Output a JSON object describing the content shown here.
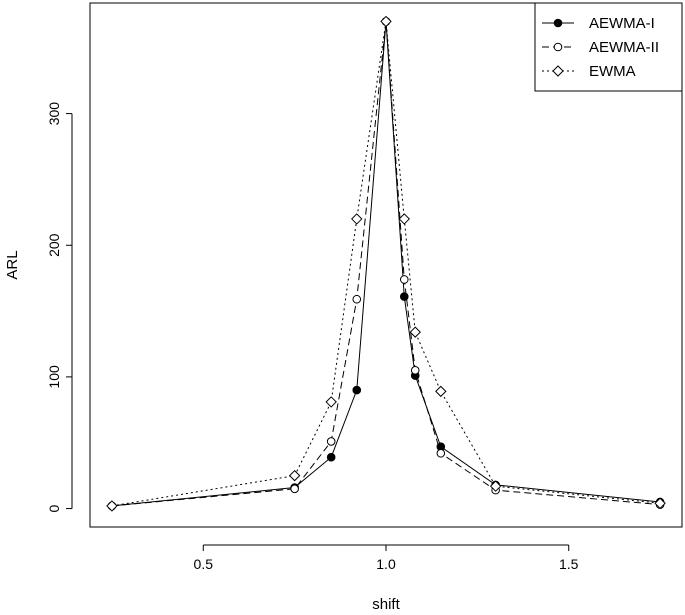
{
  "chart_data": {
    "type": "line",
    "title": "",
    "xlabel": "shift",
    "ylabel": "ARL",
    "xlim": [
      0.19,
      1.81
    ],
    "ylim": [
      -14,
      384
    ],
    "xticks": [
      0.5,
      1.0,
      1.5
    ],
    "xtick_labels": [
      "0.5",
      "1.0",
      "1.5"
    ],
    "yticks": [
      0,
      100,
      200,
      300
    ],
    "ytick_labels": [
      "0",
      "100",
      "200",
      "300"
    ],
    "grid": false,
    "legend_position": "top-right",
    "series": [
      {
        "name": "AEWMA-I",
        "line_style": "solid",
        "marker": "filled-circle",
        "x": [
          0.25,
          0.75,
          0.85,
          0.92,
          1.0,
          1.05,
          1.08,
          1.15,
          1.3,
          1.75
        ],
        "y": [
          2,
          16,
          39,
          90,
          370,
          161,
          101,
          47,
          18,
          5
        ]
      },
      {
        "name": "AEWMA-II",
        "line_style": "dashed",
        "marker": "open-circle",
        "x": [
          0.25,
          0.75,
          0.85,
          0.92,
          1.0,
          1.05,
          1.08,
          1.15,
          1.3,
          1.75
        ],
        "y": [
          2,
          15,
          51,
          159,
          370,
          174,
          105,
          42,
          14,
          3
        ]
      },
      {
        "name": "EWMA",
        "line_style": "dotted",
        "marker": "open-diamond",
        "x": [
          0.25,
          0.75,
          0.85,
          0.92,
          1.0,
          1.05,
          1.08,
          1.15,
          1.3,
          1.75
        ],
        "y": [
          2,
          25,
          81,
          220,
          370,
          220,
          134,
          89,
          17,
          4
        ]
      }
    ]
  }
}
